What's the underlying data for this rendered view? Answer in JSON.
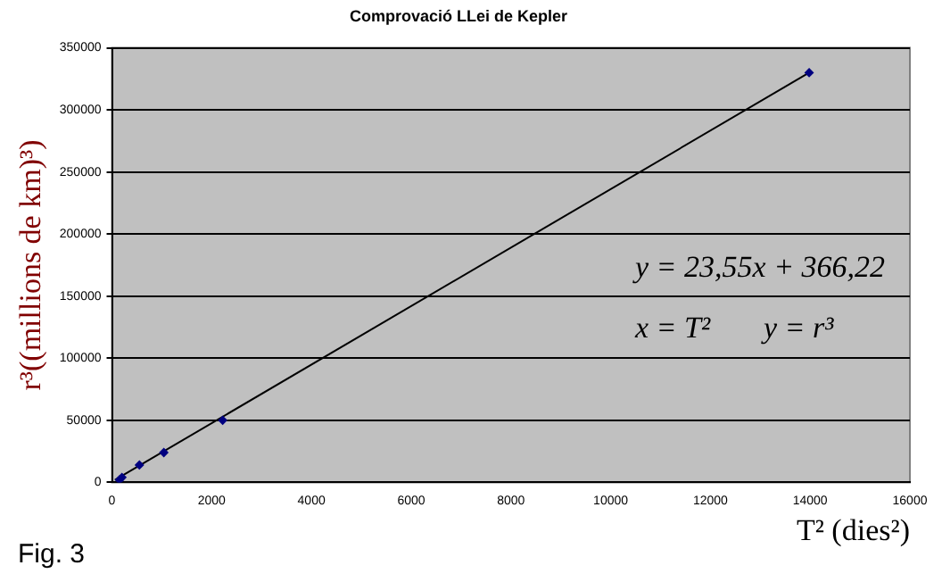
{
  "chart_data": {
    "type": "scatter",
    "title": "Comprovació LLei de Kepler",
    "xlabel": "T² (dies²)",
    "ylabel": "r³((millions de km)³)",
    "xlim": [
      0,
      16000
    ],
    "xticks": [
      0,
      2000,
      4000,
      6000,
      8000,
      10000,
      12000,
      14000,
      16000
    ],
    "ylim": [
      0,
      350000
    ],
    "yticks": [
      0,
      50000,
      100000,
      150000,
      200000,
      250000,
      300000,
      350000
    ],
    "grid": "y",
    "legend": false,
    "marker": "diamond",
    "series": [
      {
        "color": "#000080",
        "x": [
          150,
          200,
          550,
          1040,
          2220,
          13980
        ],
        "values": [
          2000,
          4000,
          14000,
          24000,
          50000,
          330000
        ]
      },
      {
        "type": "line",
        "marker": "none",
        "color": "#000000",
        "x": [
          60,
          13980
        ],
        "values": [
          2000,
          330000
        ]
      }
    ],
    "annotations": [
      "y = 23,55x + 366,22",
      "x = T²",
      "y = r³",
      "Fig. 3"
    ]
  }
}
